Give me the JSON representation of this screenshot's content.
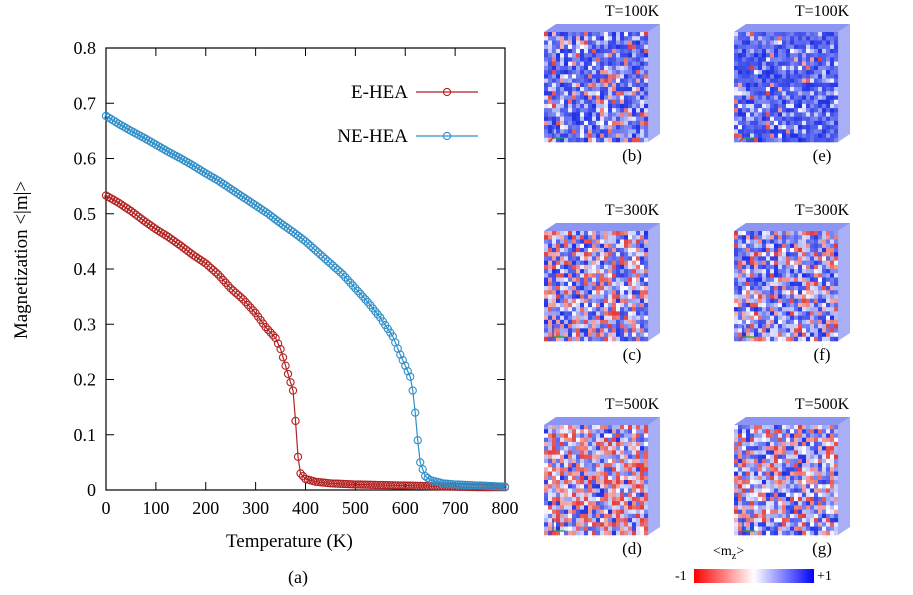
{
  "chart_data": {
    "type": "line",
    "caption": "(a)",
    "xlabel": "Temperature (K)",
    "ylabel": "Magnetization <|m|>",
    "xlim": [
      0,
      800
    ],
    "ylim": [
      0,
      0.8
    ],
    "xticks": [
      0,
      100,
      200,
      300,
      400,
      500,
      600,
      700,
      800
    ],
    "yticks": [
      0,
      0.1,
      0.2,
      0.3,
      0.4,
      0.5,
      0.6,
      0.7,
      0.8
    ],
    "ytick_labels": [
      "0",
      "0.1",
      "0.2",
      "0.3",
      "0.4",
      "0.5",
      "0.6",
      "0.7",
      "0.8"
    ],
    "grid": false,
    "legend_position": "top-right",
    "marker": "open-circle",
    "series": [
      {
        "name": "E-HEA",
        "color": "#b22222",
        "x": [
          0,
          25,
          50,
          75,
          100,
          125,
          150,
          175,
          200,
          225,
          250,
          275,
          300,
          320,
          340,
          350,
          360,
          370,
          375,
          380,
          385,
          390,
          400,
          420,
          450,
          500,
          550,
          600,
          650,
          700,
          750,
          800
        ],
        "y": [
          0.533,
          0.52,
          0.505,
          0.488,
          0.472,
          0.458,
          0.442,
          0.425,
          0.41,
          0.39,
          0.365,
          0.345,
          0.32,
          0.295,
          0.275,
          0.255,
          0.225,
          0.195,
          0.18,
          0.125,
          0.06,
          0.03,
          0.02,
          0.015,
          0.012,
          0.01,
          0.009,
          0.008,
          0.007,
          0.006,
          0.005,
          0.005
        ]
      },
      {
        "name": "NE-HEA",
        "color": "#2f8fc8",
        "x": [
          0,
          25,
          50,
          75,
          100,
          125,
          150,
          175,
          200,
          225,
          250,
          275,
          300,
          325,
          350,
          375,
          400,
          425,
          450,
          475,
          500,
          525,
          550,
          575,
          590,
          600,
          610,
          615,
          620,
          625,
          630,
          640,
          650,
          675,
          700,
          750,
          800
        ],
        "y": [
          0.677,
          0.663,
          0.65,
          0.638,
          0.625,
          0.612,
          0.6,
          0.587,
          0.573,
          0.56,
          0.545,
          0.53,
          0.515,
          0.5,
          0.483,
          0.467,
          0.45,
          0.43,
          0.41,
          0.39,
          0.365,
          0.34,
          0.312,
          0.278,
          0.245,
          0.225,
          0.205,
          0.18,
          0.14,
          0.09,
          0.05,
          0.025,
          0.018,
          0.012,
          0.01,
          0.008,
          0.006
        ]
      }
    ]
  },
  "panels": {
    "colorbar": {
      "title": "<m",
      "title_sub": "z",
      "title_end": ">",
      "min_label": "-1",
      "max_label": "+1"
    },
    "items": [
      {
        "title": "T=100K",
        "caption": "(b)",
        "red_fraction": 0.12,
        "sparkle": 0.3,
        "color_low": "#e23b3b",
        "color_high": "#1e2fe6"
      },
      {
        "title": "T=100K",
        "caption": "(e)",
        "red_fraction": 0.04,
        "sparkle": 0.18,
        "color_low": "#e23b3b",
        "color_high": "#1e2fe6"
      },
      {
        "title": "T=300K",
        "caption": "(c)",
        "red_fraction": 0.3,
        "sparkle": 0.35,
        "color_low": "#e23b3b",
        "color_high": "#1e2fe6"
      },
      {
        "title": "T=300K",
        "caption": "(f)",
        "red_fraction": 0.22,
        "sparkle": 0.35,
        "color_low": "#e23b3b",
        "color_high": "#1e2fe6"
      },
      {
        "title": "T=500K",
        "caption": "(d)",
        "red_fraction": 0.42,
        "sparkle": 0.35,
        "color_low": "#e23b3b",
        "color_high": "#1e2fe6"
      },
      {
        "title": "T=500K",
        "caption": "(g)",
        "red_fraction": 0.28,
        "sparkle": 0.38,
        "color_low": "#e23b3b",
        "color_high": "#1e2fe6"
      }
    ]
  }
}
